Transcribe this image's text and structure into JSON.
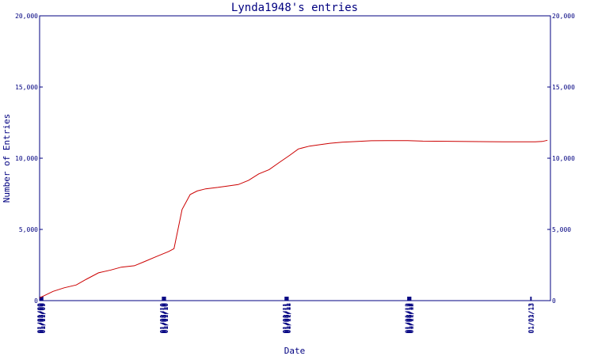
{
  "chart_data": {
    "type": "line",
    "title": "Lynda1948's entries",
    "xlabel": "Date",
    "ylabel": "Number of Entries",
    "x_tick_labels": [
      "01/01/09",
      "01/03/09",
      "01/05/09",
      "01/07/09",
      "01/09/09",
      "01/11/09",
      "01/01/10",
      "01/03/10",
      "01/05/10",
      "01/07/10",
      "01/09/10",
      "01/11/10",
      "01/01/11",
      "01/03/11",
      "01/05/11",
      "01/07/11",
      "01/09/11",
      "01/11/11",
      "01/01/12",
      "01/03/12",
      "01/05/12",
      "01/07/12",
      "01/09/12",
      "01/11/12",
      "01/01/13",
      "01/03/13"
    ],
    "y_tick_labels": [
      "0",
      "5,000",
      "10,000",
      "15,000",
      "20,000"
    ],
    "y_ticks": [
      0,
      5000,
      10000,
      15000,
      20000
    ],
    "ylim": [
      0,
      20000
    ],
    "xlim": [
      "2009-01-01",
      "2013-03-01"
    ],
    "grid": false,
    "right_axis": true,
    "series": [
      {
        "color": "#cc0000",
        "points": [
          [
            "2009-01-01",
            200
          ],
          [
            "2009-01-15",
            350
          ],
          [
            "2009-02-10",
            650
          ],
          [
            "2009-03-15",
            900
          ],
          [
            "2009-04-20",
            1100
          ],
          [
            "2009-05-20",
            1500
          ],
          [
            "2009-06-25",
            1950
          ],
          [
            "2009-08-01",
            2150
          ],
          [
            "2009-09-01",
            2350
          ],
          [
            "2009-10-10",
            2450
          ],
          [
            "2009-11-10",
            2750
          ],
          [
            "2009-12-15",
            3100
          ],
          [
            "2010-01-20",
            3450
          ],
          [
            "2010-02-05",
            3650
          ],
          [
            "2010-03-01",
            6400
          ],
          [
            "2010-03-25",
            7450
          ],
          [
            "2010-04-15",
            7700
          ],
          [
            "2010-05-10",
            7850
          ],
          [
            "2010-06-15",
            7950
          ],
          [
            "2010-07-15",
            8050
          ],
          [
            "2010-08-15",
            8150
          ],
          [
            "2010-09-15",
            8450
          ],
          [
            "2010-10-15",
            8900
          ],
          [
            "2010-11-15",
            9200
          ],
          [
            "2010-12-15",
            9700
          ],
          [
            "2011-01-15",
            10200
          ],
          [
            "2011-02-10",
            10650
          ],
          [
            "2011-03-15",
            10850
          ],
          [
            "2011-04-15",
            10950
          ],
          [
            "2011-05-15",
            11050
          ],
          [
            "2011-06-20",
            11120
          ],
          [
            "2011-08-01",
            11170
          ],
          [
            "2011-09-15",
            11230
          ],
          [
            "2011-11-01",
            11240
          ],
          [
            "2012-01-01",
            11240
          ],
          [
            "2012-02-15",
            11200
          ],
          [
            "2012-05-01",
            11190
          ],
          [
            "2012-09-01",
            11160
          ],
          [
            "2012-11-15",
            11150
          ],
          [
            "2013-01-15",
            11150
          ],
          [
            "2013-02-05",
            11180
          ],
          [
            "2013-02-20",
            11260
          ]
        ]
      }
    ]
  },
  "colors": {
    "frame": "#000080",
    "line": "#cc0000",
    "text": "#000080"
  }
}
